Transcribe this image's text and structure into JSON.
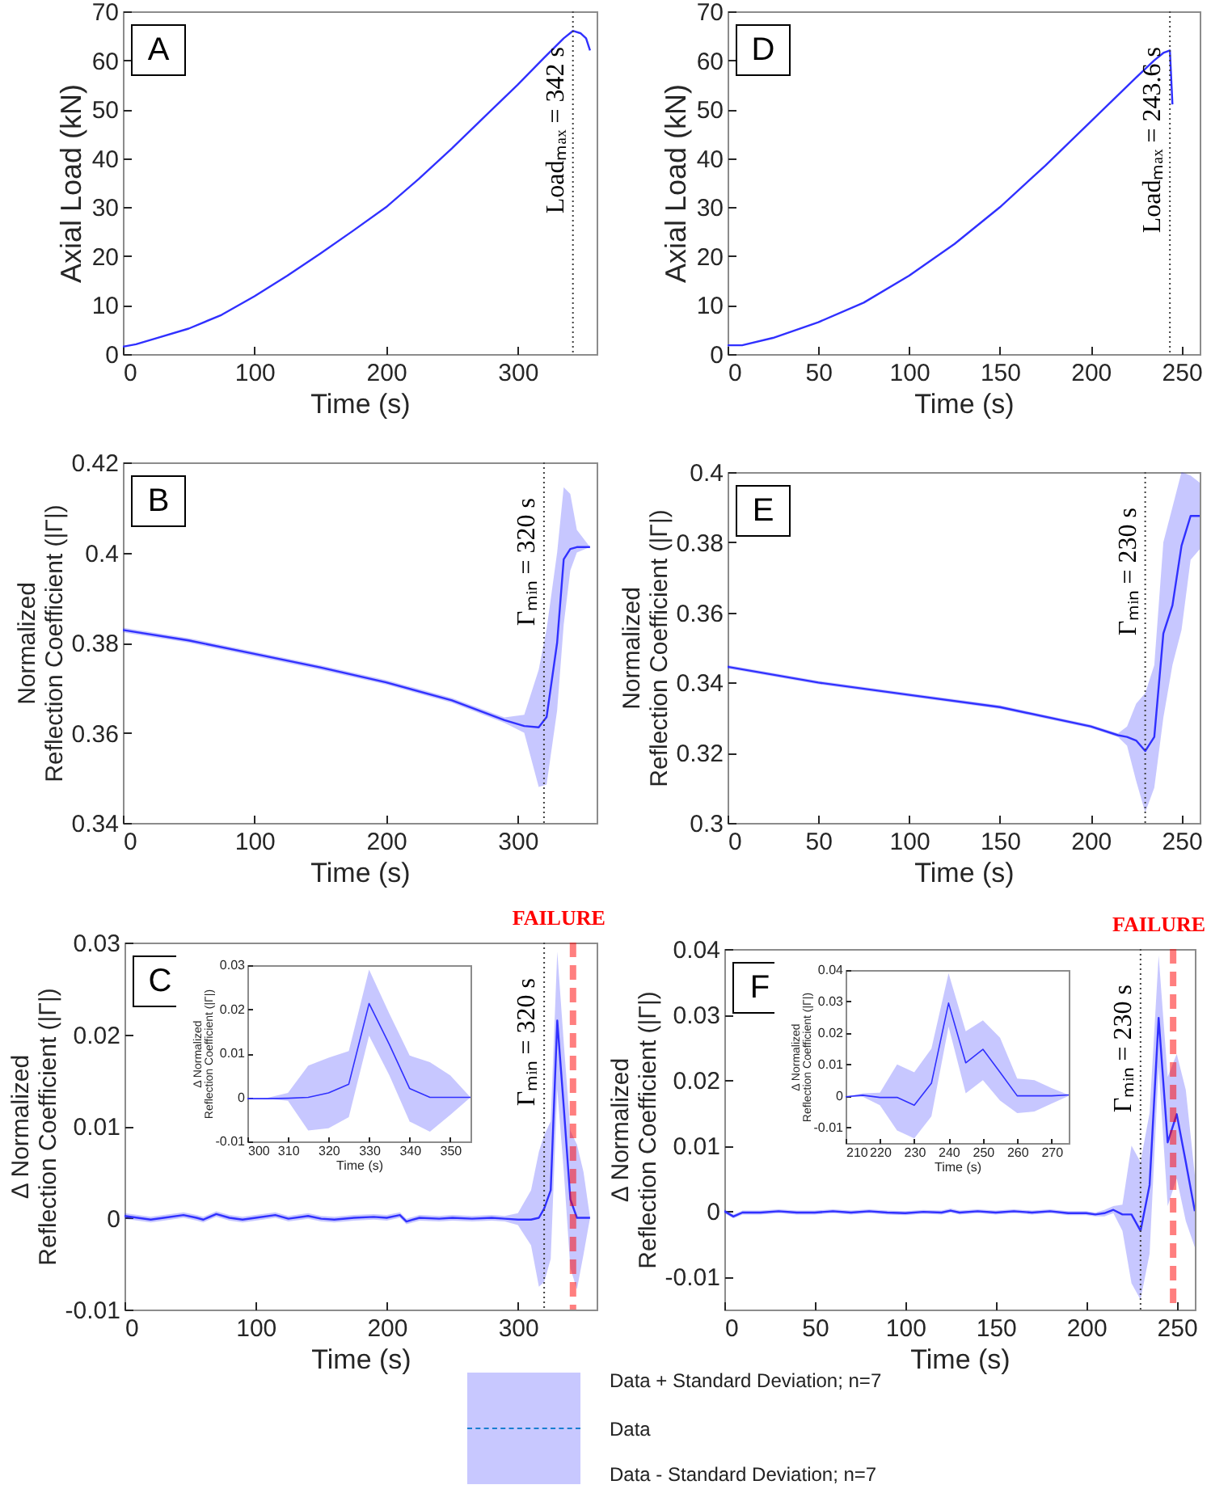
{
  "chart_data": [
    {
      "type": "line",
      "annotations": [
        "A"
      ],
      "xlabel": "Time (s)",
      "ylabel": "Axial Load (kN)",
      "xlim": [
        0,
        360
      ],
      "xticks": [
        0,
        100,
        200,
        300
      ],
      "ylim": [
        0,
        70
      ],
      "yticks": [
        0,
        10,
        20,
        30,
        40,
        50,
        60,
        70
      ],
      "x": [
        0,
        10,
        25,
        50,
        75,
        100,
        125,
        150,
        175,
        200,
        225,
        250,
        275,
        300,
        320,
        335,
        342,
        348,
        352,
        355
      ],
      "series": [
        {
          "color": "#3030ff",
          "values": [
            1.5,
            2.0,
            3.2,
            5.2,
            8.0,
            11.8,
            16.0,
            20.5,
            25.2,
            30.0,
            35.8,
            42.0,
            48.5,
            55.0,
            60.5,
            64.5,
            66.0,
            65.5,
            64.5,
            62.0
          ]
        }
      ],
      "ref_lines": [
        {
          "axis": "x",
          "value": 342,
          "label": "Loadₘₐₓ = 342 s",
          "color": "#404040",
          "line_style": "dotted"
        }
      ]
    },
    {
      "type": "line",
      "annotations": [
        "D"
      ],
      "xlabel": "Time (s)",
      "ylabel": "Axial Load (kN)",
      "xlim": [
        0,
        260
      ],
      "xticks": [
        0,
        50,
        100,
        150,
        200,
        250
      ],
      "ylim": [
        0,
        70
      ],
      "yticks": [
        0,
        10,
        20,
        30,
        40,
        50,
        60,
        70
      ],
      "x": [
        0,
        8,
        25,
        50,
        75,
        100,
        125,
        150,
        175,
        200,
        225,
        235,
        240,
        243.6,
        245
      ],
      "series": [
        {
          "color": "#3030ff",
          "values": [
            1.8,
            1.8,
            3.3,
            6.5,
            10.5,
            16.0,
            22.5,
            30.0,
            38.5,
            47.5,
            56.5,
            60.0,
            61.5,
            62.0,
            51.0
          ]
        }
      ],
      "ref_lines": [
        {
          "axis": "x",
          "value": 243.6,
          "label": "Loadₘₐₓ = 243.6 s",
          "color": "#404040",
          "line_style": "dotted"
        }
      ]
    },
    {
      "type": "line",
      "annotations": [
        "B"
      ],
      "xlabel": "Time (s)",
      "ylabel": "Normalized\nReflection Coefficient (|Γ|)",
      "xlim": [
        0,
        360
      ],
      "xticks": [
        0,
        100,
        200,
        300
      ],
      "ylim": [
        0.34,
        0.42
      ],
      "yticks": [
        0.34,
        0.36,
        0.38,
        0.4,
        0.42
      ],
      "x": [
        0,
        50,
        100,
        150,
        200,
        250,
        290,
        305,
        316,
        322,
        330,
        335,
        340,
        345,
        355
      ],
      "series": [
        {
          "color": "#3030ff",
          "values": [
            0.3828,
            0.3805,
            0.3775,
            0.3745,
            0.3712,
            0.3672,
            0.3628,
            0.3615,
            0.3612,
            0.3635,
            0.38,
            0.3985,
            0.4008,
            0.4012,
            0.4012
          ],
          "lower": [
            0.3823,
            0.38,
            0.377,
            0.374,
            0.3707,
            0.3667,
            0.3622,
            0.36,
            0.348,
            0.3485,
            0.365,
            0.384,
            0.396,
            0.4,
            0.4012
          ],
          "upper": [
            0.3833,
            0.381,
            0.378,
            0.375,
            0.3717,
            0.3677,
            0.3634,
            0.364,
            0.374,
            0.383,
            0.4,
            0.4145,
            0.413,
            0.405,
            0.4012
          ]
        }
      ],
      "ref_lines": [
        {
          "axis": "x",
          "value": 320,
          "label": "Γₘᵢₙ = 320 s",
          "color": "#404040",
          "line_style": "dotted"
        }
      ]
    },
    {
      "type": "line",
      "annotations": [
        "E"
      ],
      "xlabel": "Time (s)",
      "ylabel": "Normalized\nReflection Coefficient (|Γ|)",
      "xlim": [
        0,
        260
      ],
      "xticks": [
        0,
        50,
        100,
        150,
        200,
        250
      ],
      "ylim": [
        0.3,
        0.4
      ],
      "yticks": [
        0.3,
        0.32,
        0.34,
        0.36,
        0.38,
        0.4
      ],
      "x": [
        0,
        50,
        100,
        150,
        200,
        215,
        220,
        225,
        230,
        235,
        240,
        245,
        250,
        255,
        260
      ],
      "series": [
        {
          "color": "#3030ff",
          "values": [
            0.3445,
            0.34,
            0.3365,
            0.333,
            0.3275,
            0.325,
            0.3245,
            0.3235,
            0.3205,
            0.3245,
            0.354,
            0.362,
            0.379,
            0.3875,
            0.3875
          ],
          "lower": [
            0.344,
            0.3395,
            0.336,
            0.3325,
            0.327,
            0.3245,
            0.322,
            0.312,
            0.303,
            0.31,
            0.33,
            0.345,
            0.355,
            0.375,
            0.378
          ],
          "upper": [
            0.345,
            0.3405,
            0.337,
            0.3335,
            0.328,
            0.3255,
            0.3275,
            0.334,
            0.337,
            0.345,
            0.38,
            0.39,
            0.4,
            0.399,
            0.397
          ]
        }
      ],
      "ref_lines": [
        {
          "axis": "x",
          "value": 230,
          "label": "Γₘᵢₙ = 230 s",
          "color": "#404040",
          "line_style": "dotted"
        }
      ]
    },
    {
      "type": "line",
      "annotations": [
        "C"
      ],
      "xlabel": "Time (s)",
      "ylabel": "Δ Normalized\nReflection Coefficient (|Γ|)",
      "xlim": [
        0,
        360
      ],
      "xticks": [
        0,
        100,
        200,
        300
      ],
      "ylim": [
        -0.01,
        0.03
      ],
      "yticks": [
        -0.01,
        0,
        0.01,
        0.02,
        0.03
      ],
      "x": [
        0,
        10,
        20,
        30,
        45,
        55,
        60,
        70,
        80,
        90,
        100,
        115,
        125,
        140,
        150,
        160,
        175,
        190,
        200,
        210,
        215,
        225,
        240,
        250,
        265,
        280,
        290,
        300,
        310,
        316,
        320,
        325,
        330,
        335,
        340,
        345,
        350,
        355
      ],
      "series": [
        {
          "color": "#3030ff",
          "values": [
            0.0002,
            0,
            -0.0002,
            0,
            0.0003,
            0,
            -0.0002,
            0.0004,
            0,
            -0.0002,
            0,
            0.0003,
            -0.0001,
            0.0002,
            -0.0001,
            -0.0002,
            0,
            0.0001,
            0,
            0.0003,
            -0.0004,
            0,
            -0.0001,
            0,
            -0.0001,
            0,
            -0.0001,
            -0.0002,
            -0.0002,
            0,
            0.001,
            0.003,
            0.0215,
            0.012,
            0.002,
            0,
            0,
            0
          ],
          "lower": [
            -0.0001,
            -0.0003,
            -0.0005,
            -0.0003,
            0,
            -0.0003,
            -0.0005,
            0.0001,
            -0.0003,
            -0.0005,
            -0.0003,
            0,
            -0.0004,
            -0.0001,
            -0.0004,
            -0.0005,
            -0.0003,
            -0.0002,
            -0.0003,
            0,
            -0.0007,
            -0.0003,
            -0.0004,
            -0.0003,
            -0.0004,
            -0.0003,
            -0.0004,
            -0.0008,
            -0.003,
            -0.0075,
            -0.007,
            -0.0045,
            0.014,
            0.005,
            -0.0055,
            -0.0078,
            -0.004,
            0
          ],
          "upper": [
            0.0005,
            0.0003,
            0.0001,
            0.0003,
            0.0006,
            0.0003,
            0.0001,
            0.0007,
            0.0003,
            0.0001,
            0.0003,
            0.0006,
            0.0002,
            0.0005,
            0.0002,
            0.0001,
            0.0003,
            0.0004,
            0.0003,
            0.0006,
            -0.0001,
            0.0003,
            0.0002,
            0.0003,
            0.0002,
            0.0003,
            0.0002,
            0.0005,
            0.003,
            0.0072,
            0.009,
            0.0105,
            0.029,
            0.019,
            0.0095,
            0.008,
            0.005,
            0
          ]
        }
      ],
      "ref_lines": [
        {
          "axis": "x",
          "value": 320,
          "label": "Γₘᵢₙ = 320 s",
          "color": "#404040",
          "line_style": "dotted"
        },
        {
          "axis": "x",
          "value": 342,
          "label": "FAILURE",
          "color": "#ff0000",
          "line_style": "dashed"
        }
      ]
    },
    {
      "type": "line",
      "xlabel": "Time (s)",
      "ylabel": "Δ Normalized\nReflection Coefficient (|Γ|)",
      "xlim": [
        300,
        355
      ],
      "xticks": [
        300,
        310,
        320,
        330,
        340,
        350
      ],
      "ylim": [
        -0.01,
        0.03
      ],
      "yticks": [
        -0.01,
        0,
        0.01,
        0.02,
        0.03
      ],
      "x": [
        300,
        305,
        310,
        315,
        320,
        325,
        330,
        335,
        340,
        345,
        350,
        355
      ],
      "series": [
        {
          "color": "#3030ff",
          "values": [
            -0.0003,
            -0.0003,
            -0.0002,
            0,
            0.001,
            0.003,
            0.0213,
            0.012,
            0.002,
            0,
            0,
            0
          ],
          "lower": [
            -0.0003,
            -0.0003,
            -0.0008,
            -0.0075,
            -0.007,
            -0.0045,
            0.014,
            0.005,
            -0.0055,
            -0.0078,
            -0.004,
            0
          ],
          "upper": [
            -0.0003,
            -0.0001,
            0.001,
            0.0072,
            0.009,
            0.0105,
            0.029,
            0.019,
            0.0095,
            0.008,
            0.005,
            0
          ]
        }
      ]
    },
    {
      "type": "line",
      "annotations": [
        "F"
      ],
      "xlabel": "Time (s)",
      "ylabel": "Δ Normalized\nReflection Coefficient (|Γ|)",
      "xlim": [
        0,
        260
      ],
      "xticks": [
        0,
        50,
        100,
        150,
        200,
        250
      ],
      "ylim": [
        -0.015,
        0.04
      ],
      "yticks": [
        -0.01,
        0,
        0.01,
        0.02,
        0.03,
        0.04
      ],
      "x": [
        0,
        5,
        10,
        20,
        30,
        40,
        50,
        60,
        70,
        80,
        90,
        100,
        110,
        120,
        125,
        130,
        140,
        150,
        160,
        170,
        180,
        190,
        200,
        205,
        210,
        215,
        220,
        225,
        230,
        235,
        240,
        245,
        250,
        255,
        260
      ],
      "series": [
        {
          "color": "#3030ff",
          "values": [
            0,
            -0.0008,
            -0.0002,
            -0.0002,
            0,
            -0.0002,
            -0.0002,
            0,
            -0.0002,
            0,
            -0.0002,
            -0.0003,
            -0.0001,
            -0.0002,
            0.0001,
            -0.0002,
            0,
            -0.0002,
            0,
            -0.0002,
            0,
            -0.0003,
            -0.0003,
            -0.0005,
            -0.0003,
            0.0002,
            -0.0005,
            -0.0005,
            -0.003,
            0.004,
            0.0295,
            0.0105,
            0.0148,
            0.0075,
            0
          ],
          "lower": [
            -0.0003,
            -0.0011,
            -0.0005,
            -0.0005,
            -0.0003,
            -0.0005,
            -0.0005,
            -0.0003,
            -0.0005,
            -0.0003,
            -0.0005,
            -0.0006,
            -0.0004,
            -0.0005,
            -0.0002,
            -0.0005,
            -0.0003,
            -0.0005,
            -0.0003,
            -0.0005,
            -0.0003,
            -0.0006,
            -0.0006,
            -0.0008,
            -0.0008,
            -0.0003,
            -0.003,
            -0.011,
            -0.0135,
            -0.0065,
            0.022,
            0.0008,
            0.005,
            -0.0015,
            -0.0055
          ],
          "upper": [
            0.0003,
            -0.0005,
            0.0001,
            0.0001,
            0.0003,
            0.0001,
            0.0001,
            0.0003,
            0.0001,
            0.0003,
            0.0001,
            0,
            0.0002,
            0.0001,
            0.0004,
            0.0001,
            0.0003,
            0.0001,
            0.0003,
            0.0001,
            0.0003,
            0,
            0,
            -0.0002,
            0.0002,
            0.0008,
            0.001,
            0.01,
            0.0075,
            0.015,
            0.039,
            0.0205,
            0.024,
            0.0185,
            0.0055
          ]
        }
      ],
      "ref_lines": [
        {
          "axis": "x",
          "value": 230,
          "label": "Γₘᵢₙ = 230 s",
          "color": "#404040",
          "line_style": "dotted"
        },
        {
          "axis": "x",
          "value": 248,
          "label": "FAILURE",
          "color": "#ff0000",
          "line_style": "dashed"
        }
      ]
    },
    {
      "type": "line",
      "xlabel": "Time (s)",
      "ylabel": "Δ Normalized\nReflection Coefficient (|Γ|)",
      "xlim": [
        210,
        275
      ],
      "xticks": [
        210,
        220,
        230,
        240,
        250,
        260,
        270
      ],
      "ylim": [
        -0.015,
        0.04
      ],
      "yticks": [
        -0.01,
        0,
        0.01,
        0.02,
        0.03,
        0.04
      ],
      "x": [
        210,
        215,
        220,
        225,
        230,
        235,
        240,
        245,
        250,
        255,
        260,
        265,
        270,
        275
      ],
      "series": [
        {
          "color": "#3030ff",
          "values": [
            -0.0003,
            0.0002,
            -0.0005,
            -0.0005,
            -0.003,
            0.004,
            0.0295,
            0.0105,
            0.0148,
            0.0075,
            0,
            0,
            0,
            0.0003
          ],
          "lower": [
            -0.0003,
            -0.0003,
            -0.003,
            -0.011,
            -0.0135,
            -0.0065,
            0.022,
            0.0008,
            0.005,
            -0.0015,
            -0.0055,
            -0.005,
            -0.0025,
            0
          ],
          "upper": [
            -0.0003,
            0.0008,
            0.001,
            0.01,
            0.0075,
            0.015,
            0.039,
            0.0205,
            0.024,
            0.0185,
            0.0055,
            0.005,
            0.0025,
            0.0003
          ]
        }
      ]
    },
    {
      "type": "other",
      "annotations": [
        "Data + Standard Deviation; n=7",
        "Data",
        "Data - Standard Deviation; n=7"
      ]
    }
  ]
}
